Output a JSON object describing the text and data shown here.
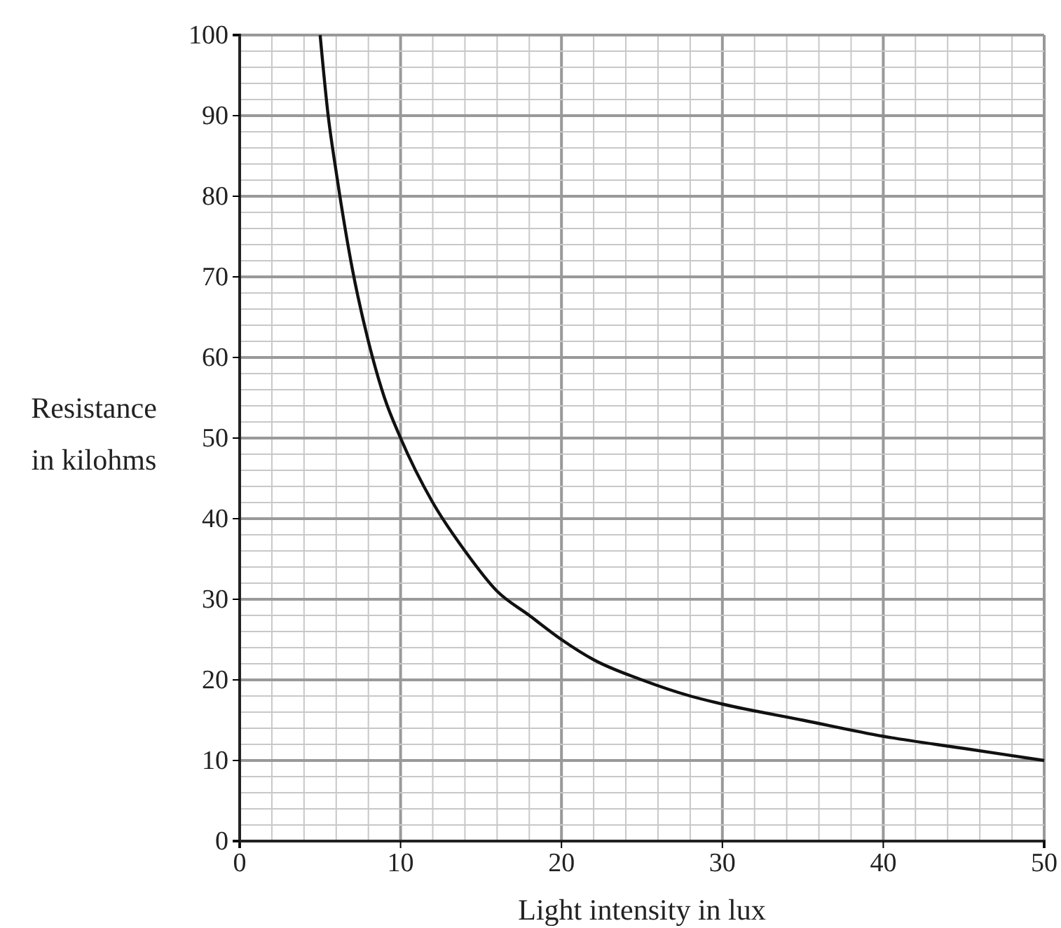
{
  "chart_data": {
    "type": "line",
    "xlabel": "Light intensity in lux",
    "ylabel": "Resistance in kilohms",
    "x": [
      5,
      5.5,
      6,
      7,
      8,
      9,
      10,
      12,
      14,
      16,
      18,
      20,
      22,
      25,
      28,
      30,
      35,
      40,
      45,
      50
    ],
    "series": [
      {
        "color": "#111111",
        "values": [
          100,
          90,
          83,
          71,
          62,
          55,
          50,
          42,
          36,
          31,
          28,
          25,
          22.5,
          20,
          18,
          17,
          15,
          13,
          11.5,
          10
        ]
      }
    ],
    "xlim": [
      0,
      50
    ],
    "ylim": [
      0,
      100
    ],
    "xticks": [
      0,
      10,
      20,
      30,
      40,
      50
    ],
    "yticks": [
      0,
      10,
      20,
      30,
      40,
      50,
      60,
      70,
      80,
      90,
      100
    ],
    "grid": true
  }
}
